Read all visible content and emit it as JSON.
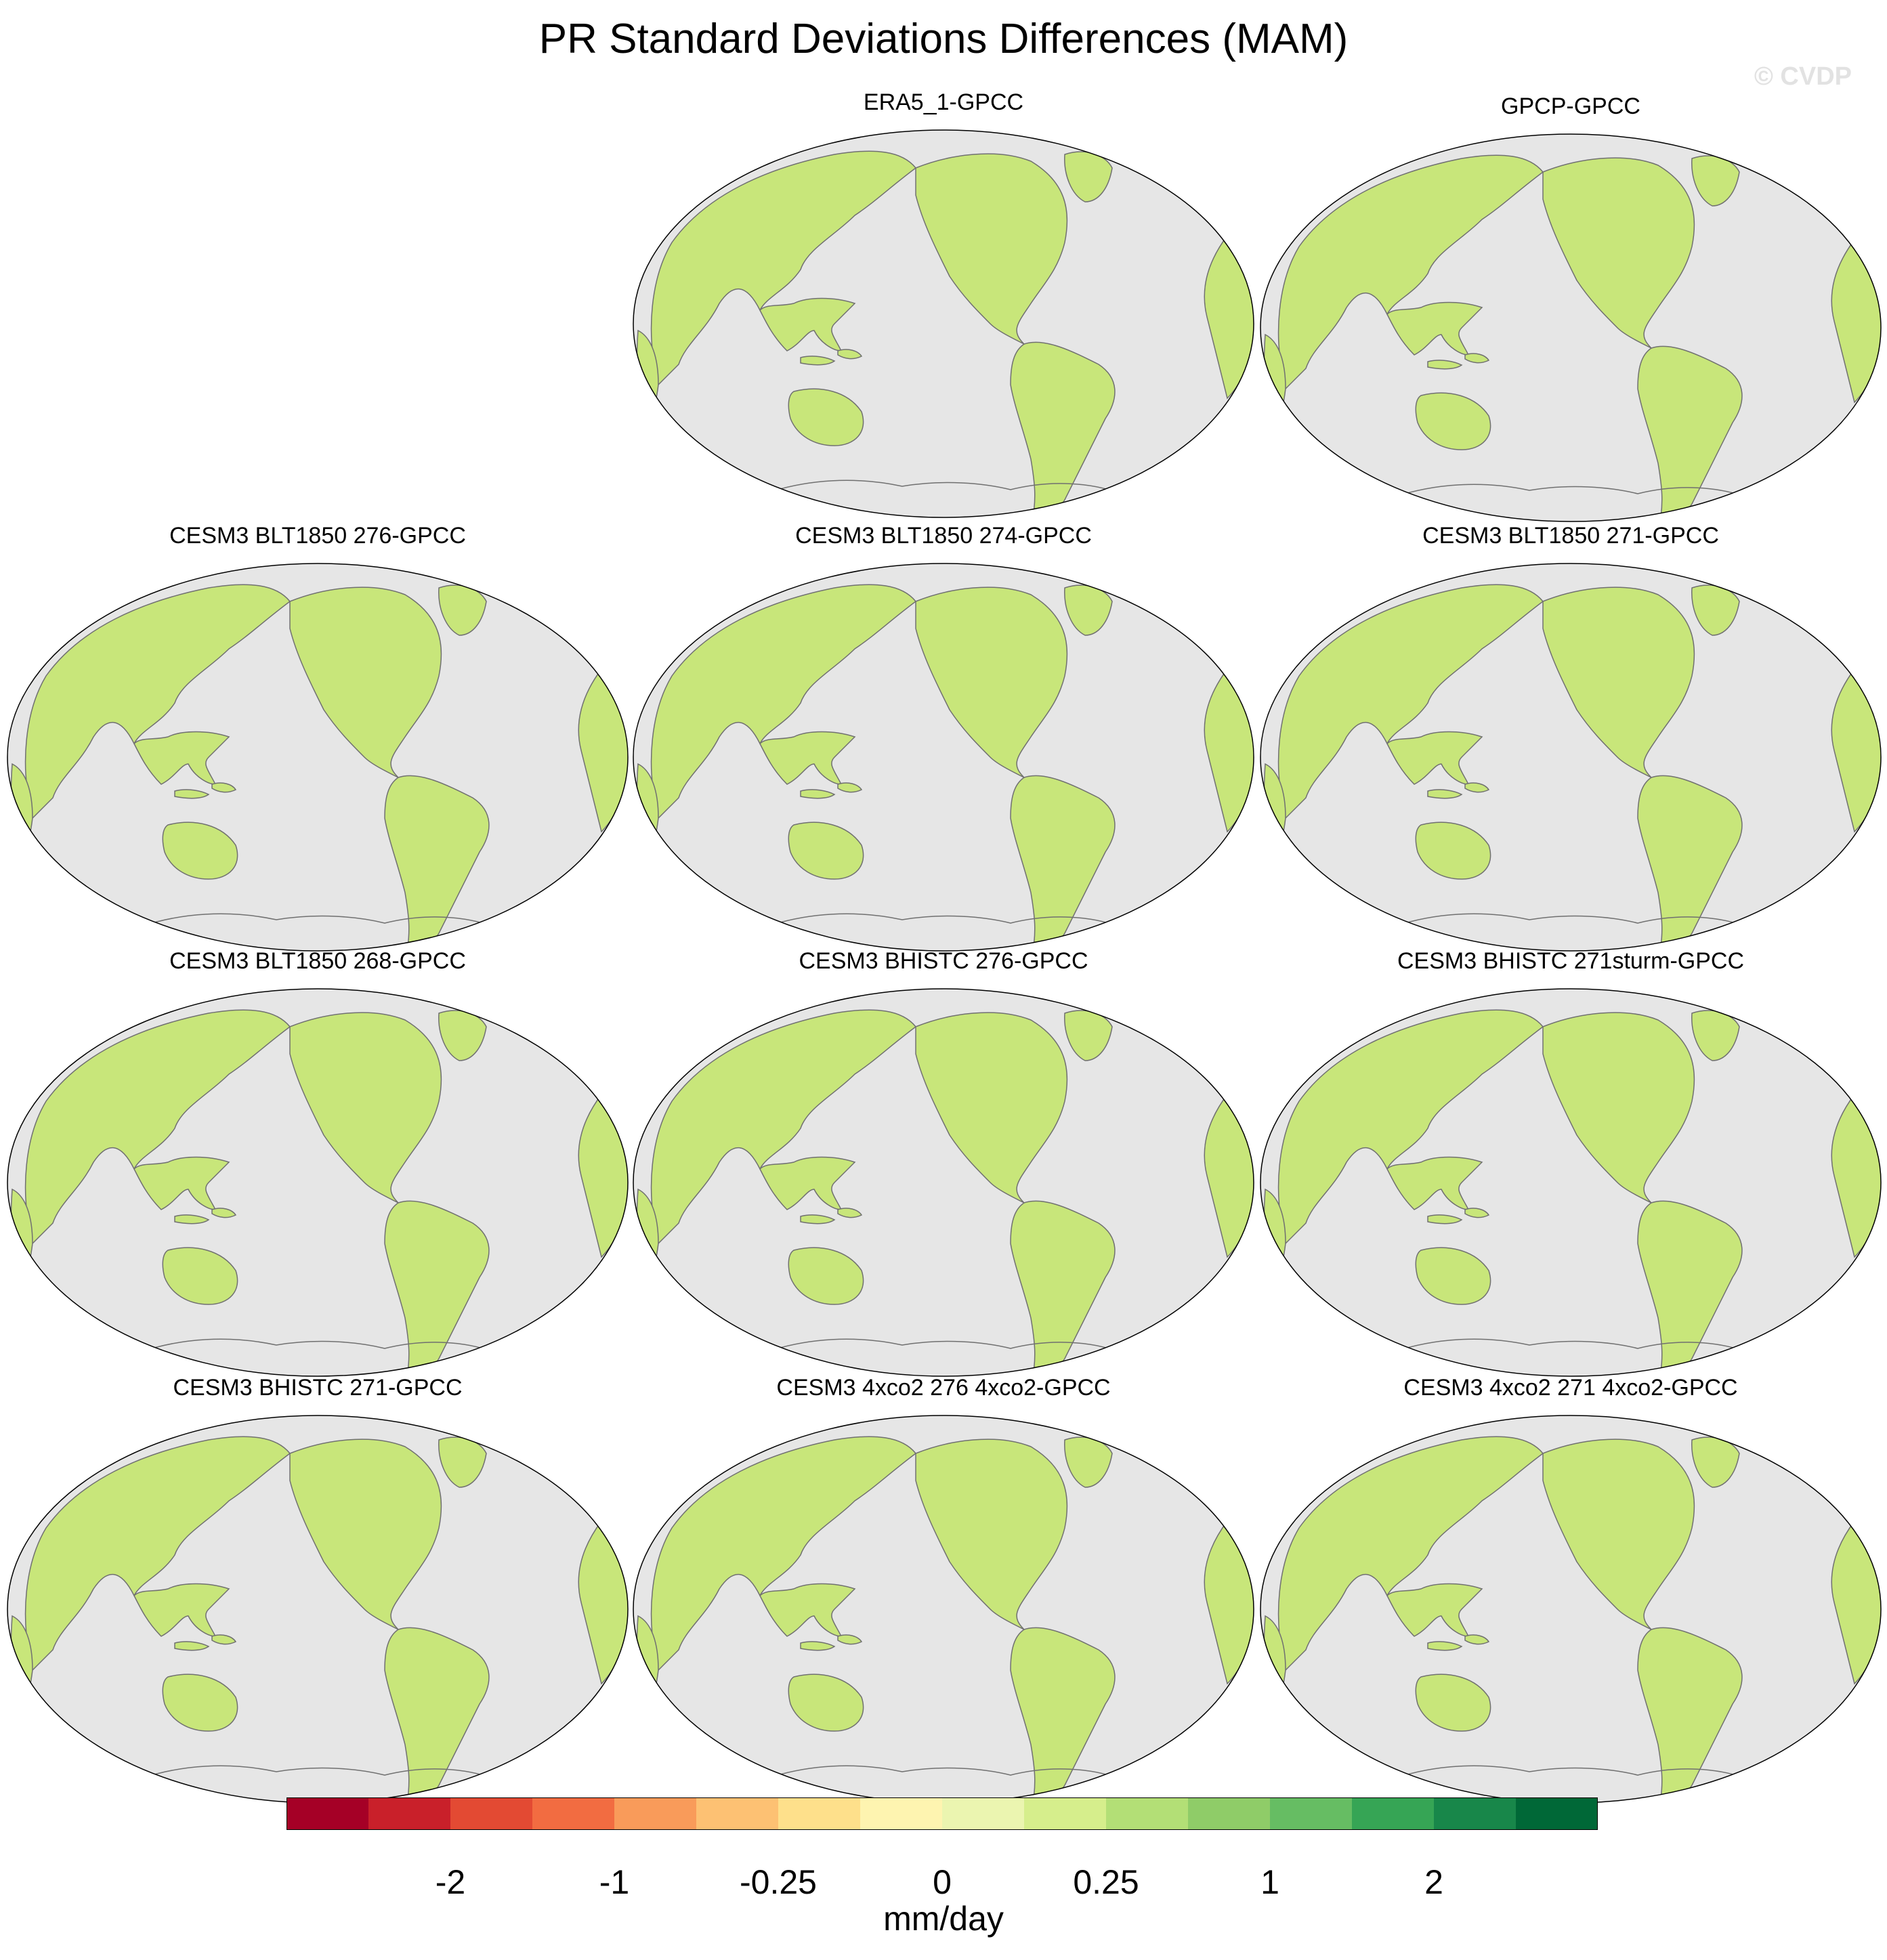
{
  "title": "PR Standard Deviations Differences (MAM)",
  "watermark": "© CVDP",
  "panels": [
    {
      "title": "ERA5_1-GPCC"
    },
    {
      "title": "GPCP-GPCC"
    },
    {
      "title": "CESM3 BLT1850 276-GPCC"
    },
    {
      "title": "CESM3 BLT1850 274-GPCC"
    },
    {
      "title": "CESM3 BLT1850 271-GPCC"
    },
    {
      "title": "CESM3 BLT1850 268-GPCC"
    },
    {
      "title": "CESM3 BHISTC 276-GPCC"
    },
    {
      "title": "CESM3 BHISTC 271sturm-GPCC"
    },
    {
      "title": "CESM3 BHISTC 271-GPCC"
    },
    {
      "title": "CESM3 4xco2 276 4xco2-GPCC"
    },
    {
      "title": "CESM3 4xco2 271 4xco2-GPCC"
    }
  ],
  "colorbar": {
    "colors": [
      "#a50026",
      "#c9202a",
      "#e34a33",
      "#f26c41",
      "#f99b5a",
      "#fdc173",
      "#fee08b",
      "#fef4b0",
      "#ebf5b0",
      "#d6ee8c",
      "#b3df76",
      "#8fcc68",
      "#66bd63",
      "#36a555",
      "#18874a",
      "#006837"
    ],
    "tick_labels": [
      "-2",
      "-1",
      "-0.25",
      "0",
      "0.25",
      "1",
      "2"
    ],
    "units": "mm/day"
  },
  "colors": {
    "ocean": "#e6e6e6",
    "land": "#c8e67a",
    "coast": "#707070"
  }
}
